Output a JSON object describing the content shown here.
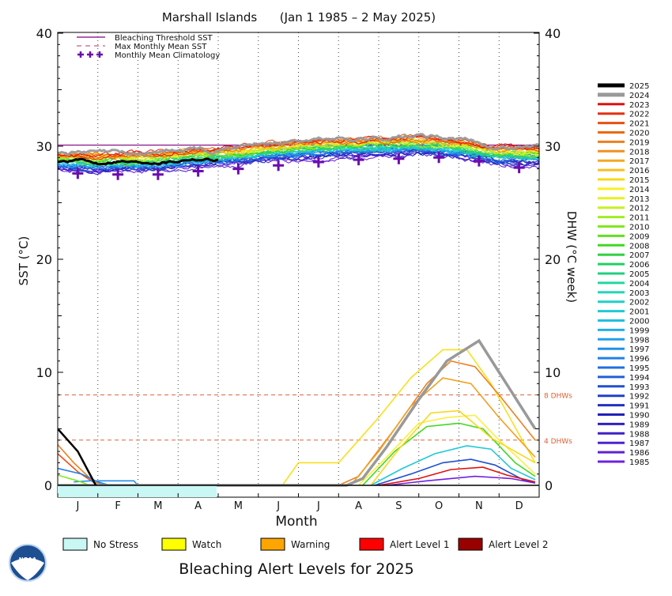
{
  "colors": {
    "threshold": "#800080",
    "climatology": "#6a0dad",
    "dhw_guides": "#e06030",
    "no_stress": "#c8f7f4",
    "watch": "#ffff00",
    "warning": "#ffa500",
    "alert1": "#ff0000",
    "alert2": "#990000"
  },
  "chart_data": {
    "type": "line",
    "title": "Marshall Islands      (Jan 1 1985 – 2 May 2025)",
    "xlabel": "Month",
    "ylabel_left": "SST (°C)",
    "ylabel_right": "DHW (°C week)",
    "ylim": [
      -1,
      40
    ],
    "yticks": [
      "0",
      "10",
      "20",
      "30",
      "40"
    ],
    "months": [
      "J",
      "F",
      "M",
      "A",
      "M",
      "J",
      "J",
      "A",
      "S",
      "O",
      "N",
      "D"
    ],
    "bleaching_threshold_sst": 30.1,
    "dhw_guides": [
      {
        "value": 8,
        "label": "8 DHWs"
      },
      {
        "value": 4,
        "label": "4 DHWs"
      }
    ],
    "legend_lines": [
      {
        "label": "Bleaching Threshold SST",
        "style": "solid",
        "color": "#800080"
      },
      {
        "label": "Max Monthly Mean SST",
        "style": "dashed",
        "color": "#c06080"
      },
      {
        "label": "Monthly Mean Climatology",
        "style": "plus",
        "color": "#6a0dad"
      }
    ],
    "climatology": [
      27.6,
      27.5,
      27.5,
      27.8,
      28.0,
      28.3,
      28.6,
      28.8,
      28.9,
      29.0,
      28.7,
      28.1
    ],
    "years": [
      "2025",
      "2024",
      "2023",
      "2022",
      "2021",
      "2020",
      "2019",
      "2018",
      "2017",
      "2016",
      "2015",
      "2014",
      "2013",
      "2012",
      "2011",
      "2010",
      "2009",
      "2008",
      "2007",
      "2006",
      "2005",
      "2004",
      "2003",
      "2002",
      "2001",
      "2000",
      "1999",
      "1998",
      "1997",
      "1996",
      "1995",
      "1994",
      "1993",
      "1992",
      "1991",
      "1990",
      "1989",
      "1988",
      "1987",
      "1986",
      "1985"
    ],
    "year_colors": [
      "#000000",
      "#999999",
      "#e01010",
      "#e43010",
      "#e85010",
      "#ea6a10",
      "#ec8020",
      "#f09020",
      "#f4a820",
      "#f8c020",
      "#f8d818",
      "#f8f020",
      "#e8f020",
      "#c8f020",
      "#a0ec20",
      "#80e820",
      "#60e020",
      "#40d820",
      "#30d040",
      "#20d060",
      "#20d080",
      "#20d8a0",
      "#20d8b8",
      "#20d0c8",
      "#20c8d8",
      "#20c0e0",
      "#20b0e8",
      "#20a0e8",
      "#2090e8",
      "#2080e8",
      "#2070e0",
      "#2060d8",
      "#2050d0",
      "#2040c8",
      "#2030c0",
      "#2020b8",
      "#3020c0",
      "#4020c8",
      "#5020d0",
      "#6020d8",
      "#7020e0"
    ],
    "sst_2025": [
      [
        0,
        28.6
      ],
      [
        0.5,
        28.8
      ],
      [
        1,
        28.5
      ],
      [
        1.5,
        28.7
      ],
      [
        2,
        28.6
      ],
      [
        2.5,
        28.6
      ],
      [
        3,
        28.7
      ],
      [
        3.3,
        28.9
      ],
      [
        4.0,
        28.8
      ]
    ],
    "dhw_2025": [
      [
        0,
        5.0
      ],
      [
        0.5,
        3.0
      ],
      [
        0.95,
        0
      ]
    ],
    "dhw_2024": [
      [
        0,
        0
      ],
      [
        3.9,
        0
      ],
      [
        7.2,
        0
      ],
      [
        7.6,
        0.6
      ],
      [
        8.2,
        3.4
      ],
      [
        9.0,
        7.6
      ],
      [
        9.7,
        11.0
      ],
      [
        10.5,
        12.8
      ],
      [
        11.0,
        10.0
      ],
      [
        11.9,
        5.0
      ]
    ],
    "dhw_others": [
      [
        [
          5.6,
          0
        ],
        [
          6.0,
          2.0
        ],
        [
          7.0,
          2.0
        ],
        [
          8.0,
          6.0
        ],
        [
          8.8,
          9.5
        ],
        [
          9.6,
          12.0
        ],
        [
          10.2,
          12.0
        ],
        [
          10.8,
          9.0
        ],
        [
          11.5,
          4.5
        ],
        [
          11.9,
          2.0
        ]
      ],
      [
        [
          7.0,
          0
        ],
        [
          7.5,
          0.8
        ],
        [
          8.4,
          5.0
        ],
        [
          9.2,
          9.0
        ],
        [
          9.8,
          11.0
        ],
        [
          10.4,
          10.5
        ],
        [
          11.0,
          8.0
        ],
        [
          11.9,
          4.0
        ]
      ],
      [
        [
          7.3,
          0
        ],
        [
          8.0,
          3.0
        ],
        [
          8.8,
          7.0
        ],
        [
          9.6,
          9.5
        ],
        [
          10.3,
          9.0
        ],
        [
          11.0,
          6.0
        ],
        [
          11.9,
          2.5
        ]
      ],
      [
        [
          7.5,
          0
        ],
        [
          8.2,
          2.5
        ],
        [
          9.0,
          5.5
        ],
        [
          9.7,
          6.0
        ],
        [
          10.4,
          6.2
        ],
        [
          11.0,
          4.0
        ],
        [
          11.9,
          1.0
        ]
      ],
      [
        [
          7.6,
          0
        ],
        [
          8.4,
          3.0
        ],
        [
          9.2,
          5.2
        ],
        [
          10.0,
          5.5
        ],
        [
          10.6,
          5.0
        ],
        [
          11.4,
          2.0
        ],
        [
          11.9,
          0.8
        ]
      ],
      [
        [
          7.8,
          0
        ],
        [
          8.6,
          1.5
        ],
        [
          9.4,
          2.8
        ],
        [
          10.2,
          3.5
        ],
        [
          10.8,
          3.2
        ],
        [
          11.3,
          1.5
        ],
        [
          11.9,
          0.5
        ]
      ],
      [
        [
          7.9,
          0
        ],
        [
          8.8,
          1.0
        ],
        [
          9.6,
          2.0
        ],
        [
          10.3,
          2.3
        ],
        [
          10.9,
          1.8
        ],
        [
          11.6,
          0.5
        ],
        [
          11.9,
          0.2
        ]
      ],
      [
        [
          8.0,
          0
        ],
        [
          9.0,
          0.6
        ],
        [
          9.8,
          1.4
        ],
        [
          10.6,
          1.6
        ],
        [
          11.2,
          0.9
        ],
        [
          11.9,
          0.3
        ]
      ],
      [
        [
          8.2,
          0
        ],
        [
          9.2,
          0.4
        ],
        [
          10.4,
          0.8
        ],
        [
          11.3,
          0.6
        ],
        [
          11.9,
          0.2
        ]
      ],
      [
        [
          0,
          3.6
        ],
        [
          0.4,
          2.0
        ],
        [
          0.9,
          0.3
        ],
        [
          1.2,
          0
        ]
      ],
      [
        [
          0,
          2.8
        ],
        [
          0.5,
          1.2
        ],
        [
          1.0,
          0
        ]
      ],
      [
        [
          0,
          1.5
        ],
        [
          0.6,
          1.0
        ],
        [
          1.0,
          0.3
        ],
        [
          1.3,
          0
        ]
      ],
      [
        [
          0.4,
          0.3
        ],
        [
          0.8,
          0.4
        ],
        [
          1.9,
          0.4
        ],
        [
          2.0,
          0
        ]
      ],
      [
        [
          0,
          0.9
        ],
        [
          0.5,
          0.4
        ],
        [
          0.8,
          0
        ]
      ],
      [
        [
          7.8,
          0
        ],
        [
          8.5,
          3.2
        ],
        [
          9.3,
          6.4
        ],
        [
          10.0,
          6.6
        ],
        [
          10.8,
          4.2
        ],
        [
          11.9,
          2.0
        ]
      ]
    ],
    "alert_bar": {
      "level": "No Stress",
      "end_month_fraction": 0.33
    },
    "alert_legend": [
      {
        "label": "No Stress",
        "color": "#c8f7f4"
      },
      {
        "label": "Watch",
        "color": "#ffff00"
      },
      {
        "label": "Warning",
        "color": "#ffa500"
      },
      {
        "label": "Alert Level 1",
        "color": "#ff0000"
      },
      {
        "label": "Alert Level 2",
        "color": "#990000"
      }
    ],
    "footer": "Bleaching Alert Levels for 2025"
  }
}
